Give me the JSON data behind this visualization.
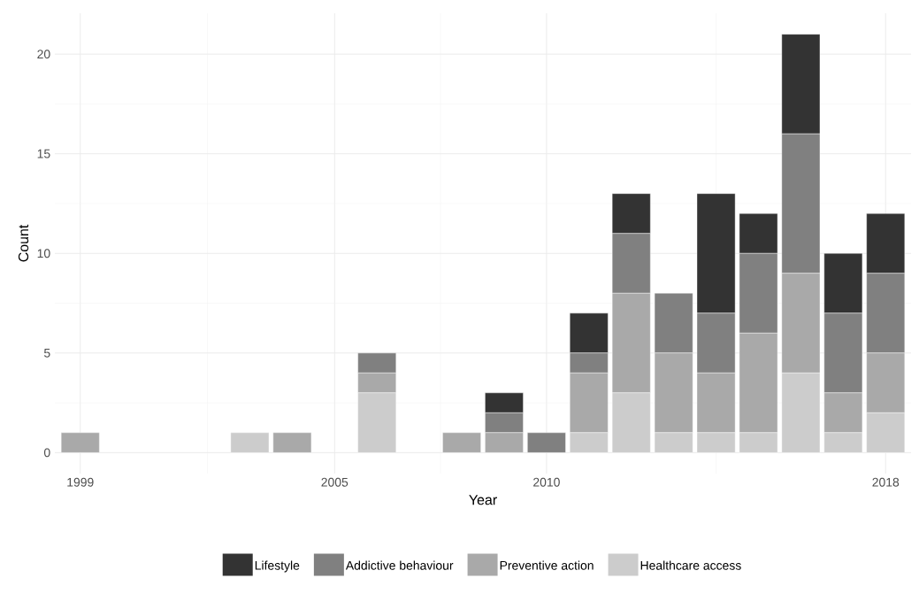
{
  "chart_data": {
    "type": "bar",
    "stacked": true,
    "xlabel": "Year",
    "ylabel": "Count",
    "x": [
      1999,
      2003,
      2004,
      2006,
      2008,
      2009,
      2010,
      2011,
      2012,
      2013,
      2014,
      2015,
      2016,
      2017,
      2018
    ],
    "series": [
      {
        "name": "Healthcare access",
        "color": "#cccccc",
        "values": [
          0,
          1,
          0,
          3,
          0,
          0,
          0,
          1,
          3,
          1,
          1,
          1,
          4,
          1,
          2
        ]
      },
      {
        "name": "Preventive action",
        "color": "#a9a9a9",
        "values": [
          1,
          0,
          1,
          1,
          1,
          1,
          0,
          3,
          5,
          4,
          3,
          5,
          5,
          2,
          3
        ]
      },
      {
        "name": "Addictive behaviour",
        "color": "#808080",
        "values": [
          0,
          0,
          0,
          1,
          0,
          1,
          1,
          1,
          3,
          3,
          3,
          4,
          7,
          4,
          4
        ]
      },
      {
        "name": "Lifestyle",
        "color": "#333333",
        "values": [
          0,
          0,
          0,
          0,
          0,
          1,
          0,
          2,
          2,
          0,
          6,
          2,
          5,
          3,
          3
        ]
      }
    ],
    "xlim": [
      1998.4,
      2018.6
    ],
    "ylim": [
      -1.05,
      22.05
    ],
    "xticks": [
      1999,
      2005,
      2010,
      2018
    ],
    "yticks": [
      0,
      5,
      10,
      15,
      20
    ],
    "grid": true,
    "legend": "bottom"
  }
}
